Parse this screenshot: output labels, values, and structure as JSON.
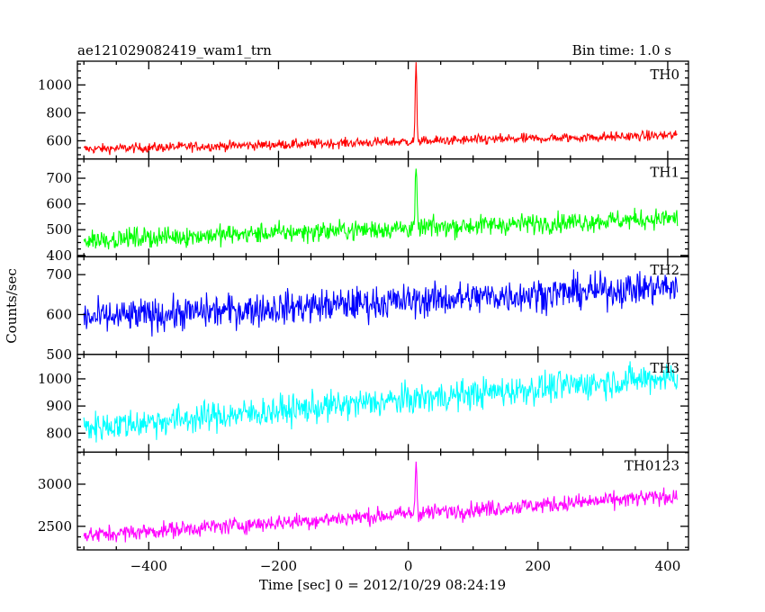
{
  "title_left": "ae121029082419_wam1_trn",
  "title_right": "Bin time: 1.0 s",
  "xlabel": "Time [sec] 0 = 2012/10/29 08:24:19",
  "ylabel": "Counts/sec",
  "chart_data": {
    "type": "line",
    "xlim": [
      -510,
      432
    ],
    "x_ticks": [
      -400,
      -200,
      0,
      200,
      400
    ],
    "x_range": [
      -500,
      415
    ],
    "bin_time": 1.0,
    "series": [
      {
        "name": "TH0",
        "color": "#ff0000",
        "ylim": [
          470,
          1170
        ],
        "y_ticks": [
          600,
          800,
          1000
        ],
        "baseline_start": 540,
        "baseline_end": 640,
        "noise": 25,
        "peak": {
          "x": 12,
          "value": 1170
        }
      },
      {
        "name": "TH1",
        "color": "#00ff00",
        "ylim": [
          395,
          775
        ],
        "y_ticks": [
          400,
          500,
          600,
          700
        ],
        "baseline_start": 460,
        "baseline_end": 545,
        "noise": 28,
        "peak": {
          "x": 12,
          "value": 765
        }
      },
      {
        "name": "TH2",
        "color": "#0000ff",
        "ylim": [
          500,
          745
        ],
        "y_ticks": [
          500,
          600,
          700
        ],
        "baseline_start": 590,
        "baseline_end": 670,
        "noise": 30,
        "peak": null
      },
      {
        "name": "TH3",
        "color": "#00ffff",
        "ylim": [
          730,
          1090
        ],
        "y_ticks": [
          800,
          900,
          1000
        ],
        "baseline_start": 820,
        "baseline_end": 1010,
        "noise": 40,
        "peak": null
      },
      {
        "name": "TH0123",
        "color": "#ff00ff",
        "ylim": [
          2220,
          3380
        ],
        "y_ticks": [
          2500,
          3000
        ],
        "baseline_start": 2390,
        "baseline_end": 2860,
        "noise": 70,
        "peak": {
          "x": 12,
          "value": 3350
        }
      }
    ]
  }
}
